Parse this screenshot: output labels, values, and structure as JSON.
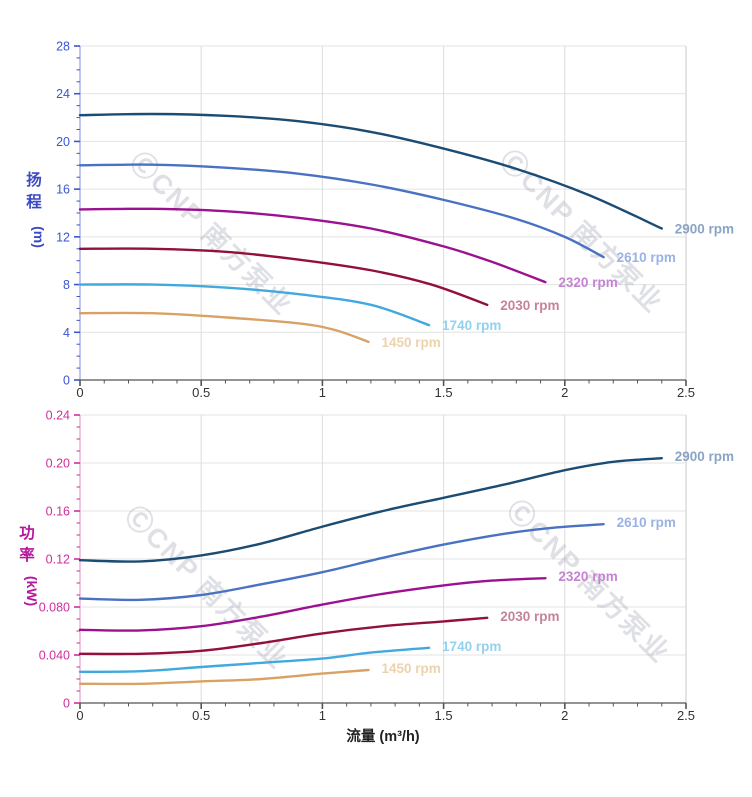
{
  "watermark": {
    "text": "ⒸCNP 南方泵业",
    "color": "rgba(148,153,168,0.30)",
    "positions": [
      [
        [
          205,
          240
        ],
        [
          575,
          238
        ]
      ],
      [
        [
          200,
          594
        ],
        [
          582,
          588
        ]
      ]
    ]
  },
  "xaxis": {
    "label": "流量 (m³/h)",
    "tick_labels": [
      "0",
      "0.5",
      "1",
      "1.5",
      "2",
      "2.5"
    ],
    "tick_values": [
      0,
      0.5,
      1,
      1.5,
      2,
      2.5
    ],
    "minor_step": 0.1,
    "line_color": "#555555",
    "label_color": "#333333",
    "title_color": "#222222"
  },
  "chart_data": [
    {
      "type": "line",
      "name": "head-chart",
      "ylabel": "扬程 (m)",
      "ylabel_chars": [
        "扬",
        "程"
      ],
      "ylabel_unit": "(m)",
      "ylim": [
        0,
        28
      ],
      "xlim": [
        0,
        2.5
      ],
      "ytick_values": [
        0,
        4,
        8,
        12,
        16,
        20,
        24,
        28
      ],
      "ytick_labels": [
        "0",
        "4",
        "8",
        "12",
        "16",
        "20",
        "24",
        "28"
      ],
      "yminor_step": 1,
      "axis_color": "#3c55d0",
      "axis_line_color": "#9aa6ea",
      "title_color": "#3b49c4",
      "series": [
        {
          "name": "2900 rpm",
          "color": "#1b4c74",
          "label_color": "#8ba4c6",
          "points": [
            [
              0,
              22.2
            ],
            [
              0.3,
              22.3
            ],
            [
              0.6,
              22.15
            ],
            [
              0.9,
              21.7
            ],
            [
              1.2,
              20.8
            ],
            [
              1.5,
              19.4
            ],
            [
              1.8,
              17.7
            ],
            [
              2.1,
              15.5
            ],
            [
              2.4,
              12.7
            ]
          ]
        },
        {
          "name": "2610 rpm",
          "color": "#4a72c2",
          "label_color": "#9bb2e4",
          "points": [
            [
              0,
              18.0
            ],
            [
              0.3,
              18.05
            ],
            [
              0.6,
              17.8
            ],
            [
              0.9,
              17.3
            ],
            [
              1.2,
              16.4
            ],
            [
              1.5,
              15.1
            ],
            [
              1.8,
              13.5
            ],
            [
              2.0,
              12.0
            ],
            [
              2.16,
              10.3
            ]
          ]
        },
        {
          "name": "2320 rpm",
          "color": "#9c1190",
          "label_color": "#c583d2",
          "points": [
            [
              0,
              14.3
            ],
            [
              0.3,
              14.35
            ],
            [
              0.6,
              14.15
            ],
            [
              0.9,
              13.6
            ],
            [
              1.2,
              12.7
            ],
            [
              1.5,
              11.2
            ],
            [
              1.7,
              9.9
            ],
            [
              1.92,
              8.2
            ]
          ]
        },
        {
          "name": "2030 rpm",
          "color": "#92103a",
          "label_color": "#c5839a",
          "points": [
            [
              0,
              11.0
            ],
            [
              0.3,
              11.0
            ],
            [
              0.6,
              10.75
            ],
            [
              0.9,
              10.1
            ],
            [
              1.2,
              9.2
            ],
            [
              1.45,
              8.0
            ],
            [
              1.68,
              6.3
            ]
          ]
        },
        {
          "name": "1740 rpm",
          "color": "#41a9dd",
          "label_color": "#93d1f0",
          "points": [
            [
              0,
              8.0
            ],
            [
              0.3,
              8.0
            ],
            [
              0.6,
              7.75
            ],
            [
              0.9,
              7.2
            ],
            [
              1.2,
              6.3
            ],
            [
              1.44,
              4.6
            ]
          ]
        },
        {
          "name": "1450 rpm",
          "color": "#d9a265",
          "label_color": "#edd3ad",
          "points": [
            [
              0,
              5.6
            ],
            [
              0.3,
              5.6
            ],
            [
              0.6,
              5.25
            ],
            [
              0.9,
              4.75
            ],
            [
              1.05,
              4.2
            ],
            [
              1.19,
              3.2
            ]
          ]
        }
      ]
    },
    {
      "type": "line",
      "name": "power-chart",
      "ylabel": "功率 (kW)",
      "ylabel_chars": [
        "功",
        "率"
      ],
      "ylabel_unit": "(kW)",
      "ylim": [
        0,
        0.24
      ],
      "xlim": [
        0,
        2.5
      ],
      "ytick_values": [
        0,
        0.04,
        0.08,
        0.12,
        0.16,
        0.2,
        0.24
      ],
      "ytick_labels": [
        "0",
        "0.040",
        "0.080",
        "0.12",
        "0.16",
        "0.20",
        "0.24"
      ],
      "yminor_step": 0.01,
      "axis_color": "#cf2f9e",
      "axis_line_color": "#eba6d4",
      "title_color": "#b5169b",
      "series": [
        {
          "name": "2900 rpm",
          "color": "#1b4c74",
          "label_color": "#8ba4c6",
          "points": [
            [
              0,
              0.119
            ],
            [
              0.25,
              0.118
            ],
            [
              0.5,
              0.123
            ],
            [
              0.75,
              0.133
            ],
            [
              1.0,
              0.147
            ],
            [
              1.25,
              0.16
            ],
            [
              1.5,
              0.171
            ],
            [
              1.75,
              0.182
            ],
            [
              2.0,
              0.194
            ],
            [
              2.2,
              0.201
            ],
            [
              2.4,
              0.204
            ]
          ]
        },
        {
          "name": "2610 rpm",
          "color": "#4a72c2",
          "label_color": "#9bb2e4",
          "points": [
            [
              0,
              0.087
            ],
            [
              0.25,
              0.086
            ],
            [
              0.5,
              0.09
            ],
            [
              0.75,
              0.099
            ],
            [
              1.0,
              0.109
            ],
            [
              1.25,
              0.121
            ],
            [
              1.5,
              0.132
            ],
            [
              1.75,
              0.141
            ],
            [
              1.95,
              0.146
            ],
            [
              2.16,
              0.149
            ]
          ]
        },
        {
          "name": "2320 rpm",
          "color": "#9c1190",
          "label_color": "#c583d2",
          "points": [
            [
              0,
              0.061
            ],
            [
              0.25,
              0.0605
            ],
            [
              0.5,
              0.064
            ],
            [
              0.75,
              0.072
            ],
            [
              1.0,
              0.082
            ],
            [
              1.25,
              0.091
            ],
            [
              1.5,
              0.098
            ],
            [
              1.7,
              0.102
            ],
            [
              1.92,
              0.104
            ]
          ]
        },
        {
          "name": "2030 rpm",
          "color": "#92103a",
          "label_color": "#c5839a",
          "points": [
            [
              0,
              0.041
            ],
            [
              0.25,
              0.041
            ],
            [
              0.5,
              0.0435
            ],
            [
              0.75,
              0.05
            ],
            [
              1.0,
              0.058
            ],
            [
              1.25,
              0.064
            ],
            [
              1.5,
              0.068
            ],
            [
              1.68,
              0.071
            ]
          ]
        },
        {
          "name": "1740 rpm",
          "color": "#41a9dd",
          "label_color": "#93d1f0",
          "points": [
            [
              0,
              0.026
            ],
            [
              0.25,
              0.0265
            ],
            [
              0.5,
              0.03
            ],
            [
              0.75,
              0.0335
            ],
            [
              1.0,
              0.037
            ],
            [
              1.2,
              0.042
            ],
            [
              1.44,
              0.046
            ]
          ]
        },
        {
          "name": "1450 rpm",
          "color": "#d9a265",
          "label_color": "#edd3ad",
          "points": [
            [
              0,
              0.016
            ],
            [
              0.25,
              0.016
            ],
            [
              0.5,
              0.018
            ],
            [
              0.75,
              0.02
            ],
            [
              1.0,
              0.0245
            ],
            [
              1.19,
              0.0275
            ]
          ]
        }
      ]
    }
  ],
  "grid": {
    "h_color": "#e3e3e3",
    "v_color": "#dcdcdc",
    "border_color": "#d9d9d9"
  }
}
